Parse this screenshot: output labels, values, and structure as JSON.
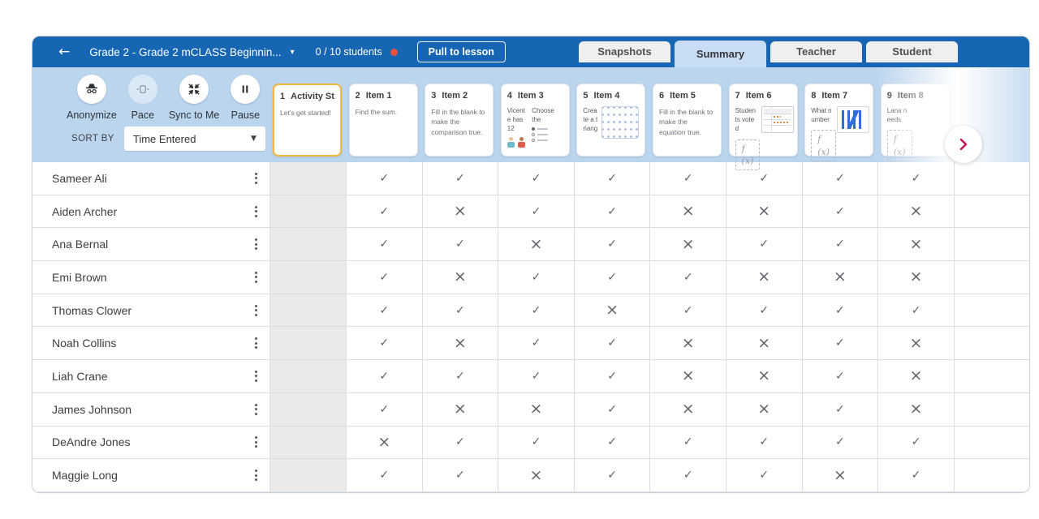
{
  "header": {
    "title": "Grade 2 - Grade 2 mCLASS Beginnin...",
    "students_count": "0 / 10 students",
    "pull_to_lesson_label": "Pull to lesson",
    "tabs": [
      {
        "label": "Snapshots",
        "active": false
      },
      {
        "label": "Summary",
        "active": true
      },
      {
        "label": "Teacher",
        "active": false
      },
      {
        "label": "Student",
        "active": false
      }
    ]
  },
  "toolbar": {
    "buttons": [
      {
        "label": "Anonymize",
        "icon": "incognito-icon",
        "disabled": false
      },
      {
        "label": "Pace",
        "icon": "presentation-icon",
        "disabled": true
      },
      {
        "label": "Sync to Me",
        "icon": "collapse-arrows-icon",
        "disabled": false
      },
      {
        "label": "Pause",
        "icon": "pause-icon",
        "disabled": false
      }
    ],
    "sort_by_label": "SORT BY",
    "sort_value": "Time Entered"
  },
  "items": [
    {
      "num": "1",
      "label": "Activity St...",
      "type": "text",
      "text": "Let's get started!",
      "selected": true
    },
    {
      "num": "2",
      "label": "Item 1",
      "type": "text",
      "text": "Find the sum."
    },
    {
      "num": "3",
      "label": "Item 2",
      "type": "text",
      "text": "Fill in the blank to make the comparison true."
    },
    {
      "num": "4",
      "label": "Item 3",
      "type": "two-col",
      "left_text": "Vicente has 12",
      "right_text": "Choose the"
    },
    {
      "num": "5",
      "label": "Item 4",
      "type": "geoboard",
      "left_text": "Create a triang"
    },
    {
      "num": "6",
      "label": "Item 5",
      "type": "text",
      "text": "Fill in the blank to make the equation true."
    },
    {
      "num": "7",
      "label": "Item 6",
      "type": "fx-table",
      "left_text": "Students voted"
    },
    {
      "num": "8",
      "label": "Item 7",
      "type": "fx-tally",
      "left_text": "What number"
    },
    {
      "num": "9",
      "label": "Item 8",
      "type": "fx-only",
      "left_text": "Lana needs"
    }
  ],
  "students": [
    {
      "name": "Sameer Ali",
      "marks": [
        "check",
        "check",
        "check",
        "check",
        "check",
        "check",
        "check",
        "check"
      ]
    },
    {
      "name": "Aiden Archer",
      "marks": [
        "check",
        "x",
        "check",
        "check",
        "x",
        "x",
        "check",
        "x"
      ]
    },
    {
      "name": "Ana Bernal",
      "marks": [
        "check",
        "check",
        "x",
        "check",
        "x",
        "check",
        "check",
        "x"
      ]
    },
    {
      "name": "Emi Brown",
      "marks": [
        "check",
        "x",
        "check",
        "check",
        "check",
        "x",
        "x",
        "x"
      ]
    },
    {
      "name": "Thomas Clower",
      "marks": [
        "check",
        "check",
        "check",
        "x",
        "check",
        "check",
        "check",
        "check"
      ]
    },
    {
      "name": "Noah Collins",
      "marks": [
        "check",
        "x",
        "check",
        "check",
        "x",
        "x",
        "check",
        "x"
      ]
    },
    {
      "name": "Liah Crane",
      "marks": [
        "check",
        "check",
        "check",
        "check",
        "x",
        "x",
        "check",
        "x"
      ]
    },
    {
      "name": "James Johnson",
      "marks": [
        "check",
        "x",
        "x",
        "check",
        "x",
        "x",
        "check",
        "x"
      ]
    },
    {
      "name": "DeAndre Jones",
      "marks": [
        "x",
        "check",
        "check",
        "check",
        "check",
        "check",
        "check",
        "check"
      ]
    },
    {
      "name": "Maggie Long",
      "marks": [
        "check",
        "check",
        "x",
        "check",
        "check",
        "check",
        "x",
        "check"
      ]
    }
  ],
  "misc": {
    "back_glyph": "←",
    "caret_glyph": "▾",
    "sort_caret_glyph": "▼",
    "fx_label": "f(x)",
    "check_glyph": "✓",
    "x_glyph": "×"
  },
  "colors": {
    "header_blue": "#1766b4",
    "toolbar_blue": "#bcd5ee",
    "active_tab_blue": "#c8ddf3",
    "selected_card_border": "#f2b842",
    "status_dot_red": "#e8513d",
    "next_arrow_pink": "#c11a5e",
    "mark_gray": "#5f6368"
  }
}
